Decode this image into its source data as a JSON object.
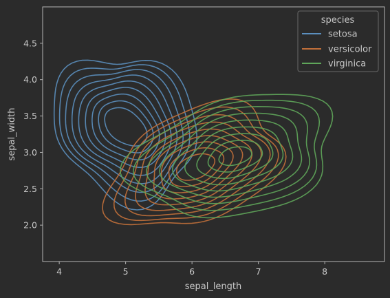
{
  "chart_data": {
    "type": "kde_contour",
    "xlabel": "sepal_length",
    "ylabel": "sepal_width",
    "xlim": [
      3.75,
      8.9
    ],
    "ylim": [
      1.5,
      5.0
    ],
    "xticks": [
      4,
      5,
      6,
      7,
      8
    ],
    "yticks": [
      2.0,
      2.5,
      3.0,
      3.5,
      4.0,
      4.5
    ],
    "xtick_labels": [
      "4",
      "5",
      "6",
      "7",
      "8"
    ],
    "ytick_labels": [
      "2.0",
      "2.5",
      "3.0",
      "3.5",
      "4.0",
      "4.5"
    ],
    "legend": {
      "title": "species",
      "position": "top-right"
    },
    "grid": false,
    "contour_levels": 9,
    "series": [
      {
        "name": "setosa",
        "color": "#5b8fbe",
        "center": [
          5.0,
          3.35
        ],
        "inner_radii": [
          0.22,
          0.35
        ],
        "outer_radii": [
          0.95,
          1.12
        ],
        "angle_deg": 58
      },
      {
        "name": "versicolor",
        "color": "#c2703a",
        "center": [
          6.05,
          2.8
        ],
        "inner_radii": [
          0.3,
          0.16
        ],
        "outer_radii": [
          1.35,
          0.76
        ],
        "angle_deg": 20
      },
      {
        "name": "virginica",
        "color": "#5fa65a",
        "center": [
          6.65,
          2.95
        ],
        "inner_radii": [
          0.25,
          0.12
        ],
        "outer_radii": [
          1.55,
          0.8
        ],
        "angle_deg": 12
      }
    ]
  }
}
